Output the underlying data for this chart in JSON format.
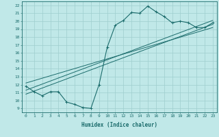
{
  "xlabel": "Humidex (Indice chaleur)",
  "bg_color": "#c0e8e8",
  "grid_color": "#9ecece",
  "line_color": "#1a6b6b",
  "xlim": [
    -0.5,
    23.5
  ],
  "ylim": [
    8.5,
    22.5
  ],
  "xticks": [
    0,
    1,
    2,
    3,
    4,
    5,
    6,
    7,
    8,
    9,
    10,
    11,
    12,
    13,
    14,
    15,
    16,
    17,
    18,
    19,
    20,
    21,
    22,
    23
  ],
  "yticks": [
    9,
    10,
    11,
    12,
    13,
    14,
    15,
    16,
    17,
    18,
    19,
    20,
    21,
    22
  ],
  "curve_x": [
    0,
    1,
    2,
    3,
    4,
    5,
    6,
    7,
    8,
    9,
    10,
    11,
    12,
    13,
    14,
    15,
    16,
    17,
    18,
    19,
    20,
    21,
    22,
    23
  ],
  "curve_y": [
    11.8,
    11.1,
    10.6,
    11.1,
    11.1,
    9.8,
    9.5,
    9.1,
    9.0,
    12.0,
    16.7,
    19.5,
    20.1,
    21.1,
    21.0,
    21.9,
    21.2,
    20.6,
    19.8,
    20.0,
    19.8,
    19.2,
    19.2,
    19.8
  ],
  "line1_x": [
    0,
    23
  ],
  "line1_y": [
    10.8,
    19.6
  ],
  "line2_x": [
    0,
    23
  ],
  "line2_y": [
    11.3,
    20.1
  ],
  "line3_x": [
    0,
    23
  ],
  "line3_y": [
    12.2,
    19.2
  ]
}
